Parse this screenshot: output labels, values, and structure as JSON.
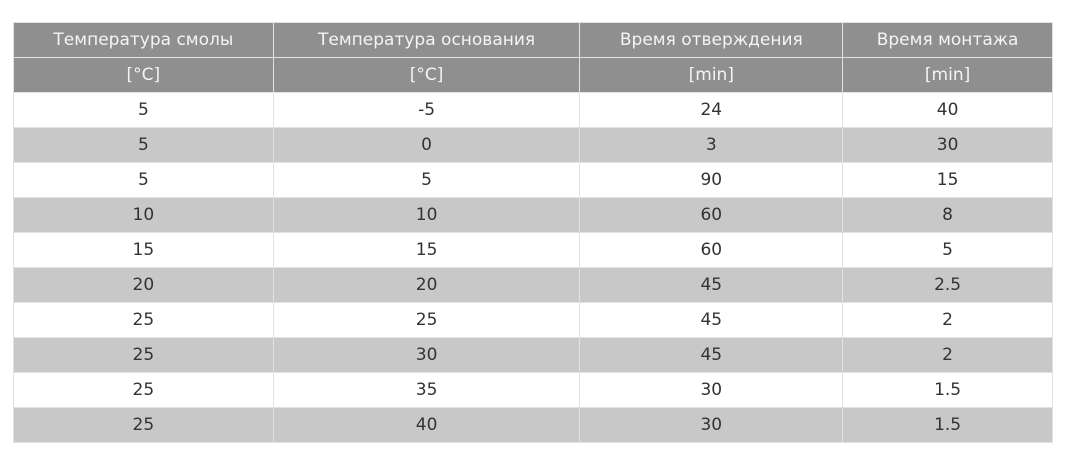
{
  "table": {
    "headers": [
      "Температура смолы",
      "Температура основания",
      "Время отверждения",
      "Время монтажа"
    ],
    "units": [
      "[°C]",
      "[°C]",
      "[min]",
      "[min]"
    ],
    "rows": [
      [
        "5",
        "-5",
        "24",
        "40"
      ],
      [
        "5",
        "0",
        "3",
        "30"
      ],
      [
        "5",
        "5",
        "90",
        "15"
      ],
      [
        "10",
        "10",
        "60",
        "8"
      ],
      [
        "15",
        "15",
        "60",
        "5"
      ],
      [
        "20",
        "20",
        "45",
        "2.5"
      ],
      [
        "25",
        "25",
        "45",
        "2"
      ],
      [
        "25",
        "30",
        "45",
        "2"
      ],
      [
        "25",
        "35",
        "30",
        "1.5"
      ],
      [
        "25",
        "40",
        "30",
        "1.5"
      ]
    ]
  },
  "colors": {
    "header_bg": "#8f8f8f",
    "alt_row_bg": "#c8c8c8"
  }
}
